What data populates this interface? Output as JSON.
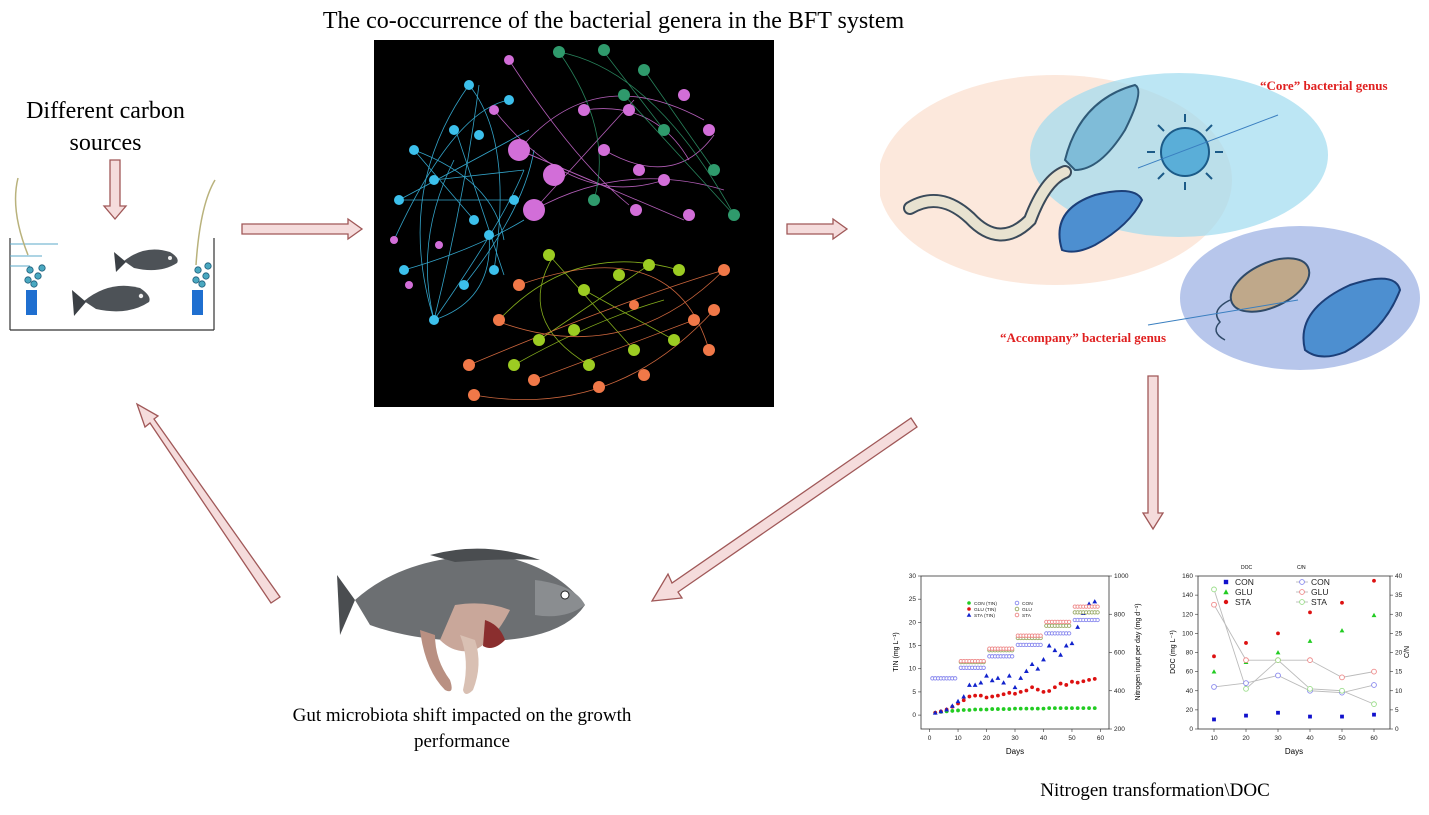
{
  "title": "The co-occurrence of the bacterial genera in the BFT system",
  "carbon_label": "Different carbon sources",
  "core_label": "“Core” bacterial genus",
  "accompany_label": "“Accompany” bacterial genus",
  "gut_label": "Gut microbiota shift impacted on the growth performance",
  "nitrogen_label": "Nitrogen transformation\\DOC",
  "colors": {
    "arrow_fill": "#f5dcdc",
    "arrow_stroke": "#a05858",
    "label_red": "#e02020",
    "cluster_blue": "#3cc0ec",
    "cluster_pink": "#d26ed8",
    "cluster_green": "#2f9a6c",
    "cluster_lime": "#9ccc22",
    "cluster_orange": "#f07848"
  },
  "chart_data": [
    {
      "type": "scatter",
      "xlabel": "Days",
      "ylabel": "TIN (mg L⁻¹)",
      "y2label": "Nitrogen input per day (mg d⁻¹)",
      "xlim": [
        -3,
        63
      ],
      "ylim": [
        -3,
        30
      ],
      "y2lim": [
        200,
        1000
      ],
      "x_ticks": [
        0,
        10,
        20,
        30,
        40,
        50,
        60
      ],
      "y_ticks": [
        0,
        5,
        10,
        15,
        20,
        25,
        30
      ],
      "y2_ticks": [
        200,
        400,
        600,
        800,
        1000
      ],
      "legend": [
        "CON (TIN)",
        "GLU (TIN)",
        "STA (TIN)",
        "CON",
        "GLU",
        "STA"
      ],
      "series": [
        {
          "name": "CON (TIN)",
          "axis": "y",
          "color": "#22cc22",
          "marker": "circle",
          "x": [
            2,
            4,
            6,
            8,
            10,
            12,
            14,
            16,
            18,
            20,
            22,
            24,
            26,
            28,
            30,
            32,
            34,
            36,
            38,
            40,
            42,
            44,
            46,
            48,
            50,
            52,
            54,
            56,
            58
          ],
          "y": [
            0.5,
            0.7,
            0.8,
            0.9,
            1.0,
            1.1,
            1.1,
            1.2,
            1.2,
            1.2,
            1.3,
            1.3,
            1.3,
            1.3,
            1.4,
            1.4,
            1.4,
            1.4,
            1.4,
            1.4,
            1.5,
            1.5,
            1.5,
            1.5,
            1.5,
            1.5,
            1.5,
            1.5,
            1.5
          ]
        },
        {
          "name": "GLU (TIN)",
          "axis": "y",
          "color": "#dd1111",
          "marker": "circle",
          "x": [
            2,
            4,
            6,
            8,
            10,
            12,
            14,
            16,
            18,
            20,
            22,
            24,
            26,
            28,
            30,
            32,
            34,
            36,
            38,
            40,
            42,
            44,
            46,
            48,
            50,
            52,
            54,
            56,
            58
          ],
          "y": [
            0.5,
            0.8,
            1.2,
            1.8,
            2.5,
            3.2,
            4.0,
            4.2,
            4.2,
            3.8,
            4.0,
            4.2,
            4.5,
            4.8,
            4.6,
            5.0,
            5.3,
            6.0,
            5.5,
            5.0,
            5.2,
            6.0,
            6.8,
            6.5,
            7.2,
            7.0,
            7.3,
            7.6,
            7.8
          ]
        },
        {
          "name": "STA (TIN)",
          "axis": "y",
          "color": "#1122cc",
          "marker": "triangle",
          "x": [
            2,
            4,
            6,
            8,
            10,
            12,
            14,
            16,
            18,
            20,
            22,
            24,
            26,
            28,
            30,
            32,
            34,
            36,
            38,
            40,
            42,
            44,
            46,
            48,
            50,
            52,
            54,
            56,
            58
          ],
          "y": [
            0.5,
            0.8,
            1.2,
            2.0,
            3.0,
            4.0,
            6.5,
            6.5,
            7.0,
            8.5,
            7.5,
            8.0,
            7.0,
            8.5,
            6.0,
            8.0,
            9.5,
            11.0,
            10.0,
            12.0,
            15.0,
            14.0,
            13.0,
            15.0,
            15.5,
            19.0,
            22.0,
            24.0,
            24.5
          ]
        },
        {
          "name": "CON",
          "axis": "y2",
          "color": "#8888ee",
          "marker": "open-circle",
          "x": [
            1,
            2,
            3,
            4,
            5,
            6,
            7,
            8,
            9,
            11,
            12,
            13,
            14,
            15,
            16,
            17,
            18,
            19,
            21,
            22,
            23,
            24,
            25,
            26,
            27,
            28,
            29,
            31,
            32,
            33,
            34,
            35,
            36,
            37,
            38,
            39,
            41,
            42,
            43,
            44,
            45,
            46,
            47,
            48,
            49,
            51,
            52,
            53,
            54,
            55,
            56,
            57,
            58,
            59
          ],
          "y": [
            465,
            465,
            465,
            465,
            465,
            465,
            465,
            465,
            465,
            520,
            520,
            520,
            520,
            520,
            520,
            520,
            520,
            520,
            580,
            580,
            580,
            580,
            580,
            580,
            580,
            580,
            580,
            640,
            640,
            640,
            640,
            640,
            640,
            640,
            640,
            640,
            700,
            700,
            700,
            700,
            700,
            700,
            700,
            700,
            700,
            770,
            770,
            770,
            770,
            770,
            770,
            770,
            770,
            770
          ]
        },
        {
          "name": "GLU",
          "axis": "y2",
          "color": "#99aa66",
          "marker": "open-circle",
          "x": [
            11,
            12,
            13,
            14,
            15,
            16,
            17,
            18,
            19,
            21,
            22,
            23,
            24,
            25,
            26,
            27,
            28,
            29,
            31,
            32,
            33,
            34,
            35,
            36,
            37,
            38,
            39,
            41,
            42,
            43,
            44,
            45,
            46,
            47,
            48,
            49,
            51,
            52,
            53,
            54,
            55,
            56,
            57,
            58,
            59
          ],
          "y": [
            550,
            550,
            550,
            550,
            550,
            550,
            550,
            550,
            550,
            612,
            612,
            612,
            612,
            612,
            612,
            612,
            612,
            612,
            676,
            676,
            676,
            676,
            676,
            676,
            676,
            676,
            676,
            740,
            740,
            740,
            740,
            740,
            740,
            740,
            740,
            740,
            810,
            810,
            810,
            810,
            810,
            810,
            810,
            810,
            810
          ]
        },
        {
          "name": "STA",
          "axis": "y2",
          "color": "#ee8888",
          "marker": "open-circle",
          "x": [
            11,
            12,
            13,
            14,
            15,
            16,
            17,
            18,
            19,
            21,
            22,
            23,
            24,
            25,
            26,
            27,
            28,
            29,
            31,
            32,
            33,
            34,
            35,
            36,
            37,
            38,
            39,
            41,
            42,
            43,
            44,
            45,
            46,
            47,
            48,
            49,
            51,
            52,
            53,
            54,
            55,
            56,
            57,
            58,
            59
          ],
          "y": [
            555,
            555,
            555,
            555,
            555,
            555,
            555,
            555,
            555,
            620,
            620,
            620,
            620,
            620,
            620,
            620,
            620,
            620,
            688,
            688,
            688,
            688,
            688,
            688,
            688,
            688,
            688,
            760,
            760,
            760,
            760,
            760,
            760,
            760,
            760,
            760,
            840,
            840,
            840,
            840,
            840,
            840,
            840,
            840,
            840
          ]
        }
      ]
    },
    {
      "type": "scatter",
      "xlabel": "Days",
      "ylabel": "DOC (mg L⁻¹)",
      "y2label": "C/N",
      "legend_left_title": "DOC",
      "legend_right_title": "C/N",
      "xlim": [
        5,
        65
      ],
      "ylim": [
        0,
        160
      ],
      "y2lim": [
        0,
        40
      ],
      "x_ticks": [
        10,
        20,
        30,
        40,
        50,
        60
      ],
      "y_ticks": [
        0,
        20,
        40,
        60,
        80,
        100,
        120,
        140,
        160
      ],
      "y2_ticks": [
        0,
        5,
        10,
        15,
        20,
        25,
        30,
        35,
        40
      ],
      "legend": [
        "CON",
        "GLU",
        "STA",
        "CON",
        "GLU",
        "STA"
      ],
      "series": [
        {
          "name": "CON",
          "axis": "y",
          "color": "#1111cc",
          "marker": "square",
          "x": [
            10,
            20,
            30,
            40,
            50,
            60
          ],
          "y": [
            10,
            14,
            17,
            13,
            13,
            15
          ]
        },
        {
          "name": "GLU",
          "axis": "y",
          "color": "#22cc22",
          "marker": "triangle",
          "x": [
            10,
            20,
            30,
            40,
            50,
            60
          ],
          "y": [
            60,
            70,
            80,
            92,
            103,
            119
          ]
        },
        {
          "name": "STA",
          "axis": "y",
          "color": "#dd1111",
          "marker": "circle",
          "x": [
            10,
            20,
            30,
            40,
            50,
            60
          ],
          "y": [
            76,
            90,
            100,
            122,
            132,
            155
          ]
        },
        {
          "name": "CON",
          "axis": "y2",
          "color": "#8888ee",
          "marker": "open-circle-line",
          "x": [
            10,
            20,
            30,
            40,
            50,
            60
          ],
          "y": [
            11,
            12,
            14,
            10,
            9.5,
            11.5
          ]
        },
        {
          "name": "GLU",
          "axis": "y2",
          "color": "#ee8888",
          "marker": "open-circle-line",
          "x": [
            10,
            20,
            30,
            40,
            50,
            60
          ],
          "y": [
            32.5,
            18,
            18,
            18,
            13.5,
            15
          ]
        },
        {
          "name": "STA",
          "axis": "y2",
          "color": "#99dd88",
          "marker": "open-circle-line",
          "x": [
            10,
            20,
            30,
            40,
            50,
            60
          ],
          "y": [
            36.5,
            10.5,
            18,
            10.5,
            10,
            6.5
          ]
        }
      ]
    }
  ]
}
